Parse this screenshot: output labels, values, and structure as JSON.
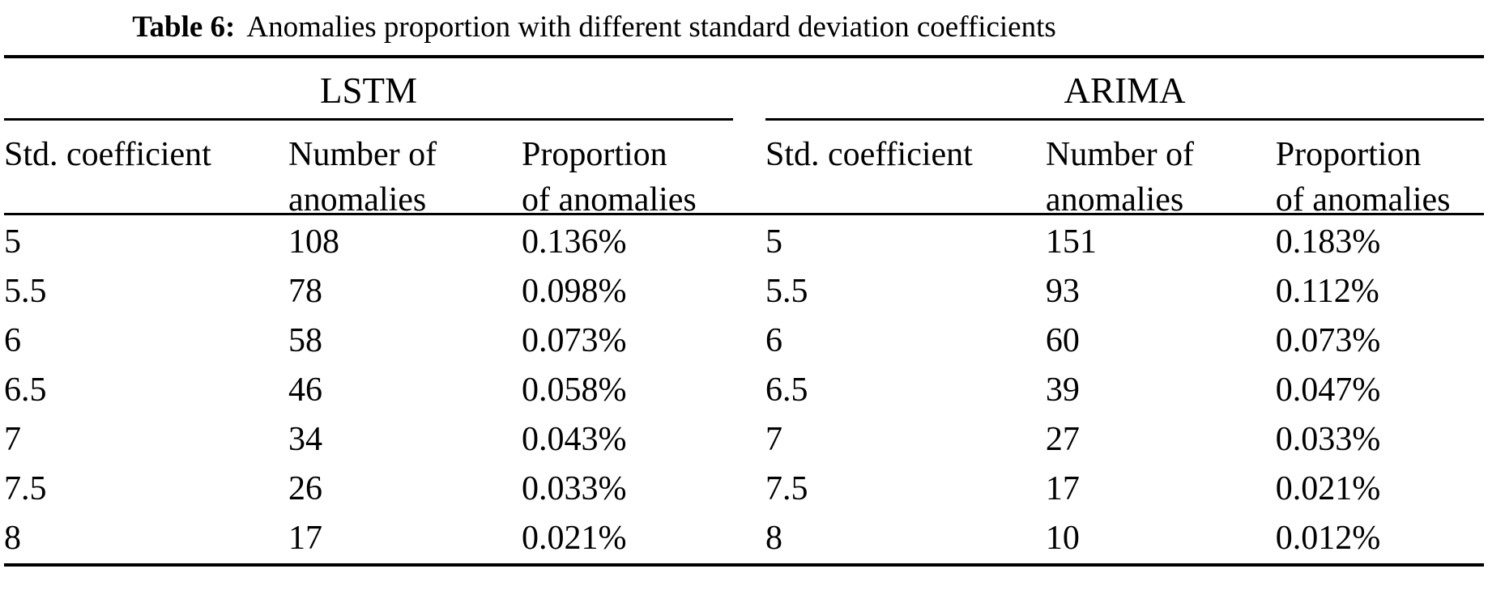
{
  "table": {
    "caption_label": "Table 6:",
    "caption_text": "Anomalies proportion with different standard deviation coefficients",
    "groups": [
      {
        "name": "LSTM",
        "columns": [
          {
            "line1": "Std. coefficient",
            "line2": ""
          },
          {
            "line1": "Number of",
            "line2": "anomalies"
          },
          {
            "line1": "Proportion",
            "line2": "of anomalies"
          }
        ],
        "rows": [
          [
            "5",
            "108",
            "0.136%"
          ],
          [
            "5.5",
            "78",
            "0.098%"
          ],
          [
            "6",
            "58",
            "0.073%"
          ],
          [
            "6.5",
            "46",
            "0.058%"
          ],
          [
            "7",
            "34",
            "0.043%"
          ],
          [
            "7.5",
            "26",
            "0.033%"
          ],
          [
            "8",
            "17",
            "0.021%"
          ]
        ]
      },
      {
        "name": "ARIMA",
        "columns": [
          {
            "line1": "Std. coefficient",
            "line2": ""
          },
          {
            "line1": "Number of",
            "line2": "anomalies"
          },
          {
            "line1": "Proportion",
            "line2": "of anomalies"
          }
        ],
        "rows": [
          [
            "5",
            "151",
            "0.183%"
          ],
          [
            "5.5",
            "93",
            "0.112%"
          ],
          [
            "6",
            "60",
            "0.073%"
          ],
          [
            "6.5",
            "39",
            "0.047%"
          ],
          [
            "7",
            "27",
            "0.033%"
          ],
          [
            "7.5",
            "17",
            "0.021%"
          ],
          [
            "8",
            "10",
            "0.012%"
          ]
        ]
      }
    ]
  }
}
